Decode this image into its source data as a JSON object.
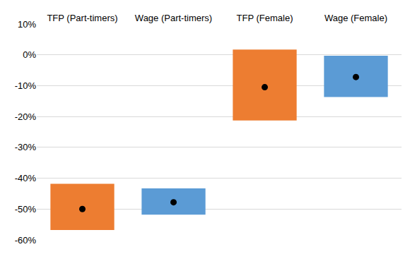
{
  "chart_data": {
    "type": "floating_bar",
    "categories": [
      "TFP (Part-timers)",
      "Wage (Part-timers)",
      "TFP (Female)",
      "Wage (Female)"
    ],
    "values": [
      -50,
      -47.8,
      -10.5,
      -7.2
    ],
    "low": [
      -56.8,
      -51.8,
      -21.3,
      -13.7
    ],
    "high": [
      -41.8,
      -43.3,
      1.7,
      -0.3
    ],
    "colors": [
      "#ed7d31",
      "#5b9bd5",
      "#ed7d31",
      "#5b9bd5"
    ],
    "marker": "circle",
    "ylim": [
      -60,
      10
    ],
    "yticks": [
      {
        "value": -60,
        "label": "-60%"
      },
      {
        "value": -50,
        "label": "-50%"
      },
      {
        "value": -40,
        "label": "-40%"
      },
      {
        "value": -30,
        "label": "-30%"
      },
      {
        "value": -20,
        "label": "-20%"
      },
      {
        "value": -10,
        "label": "-10%"
      },
      {
        "value": 0,
        "label": "0%"
      },
      {
        "value": 10,
        "label": "10%"
      }
    ],
    "grid": true
  }
}
